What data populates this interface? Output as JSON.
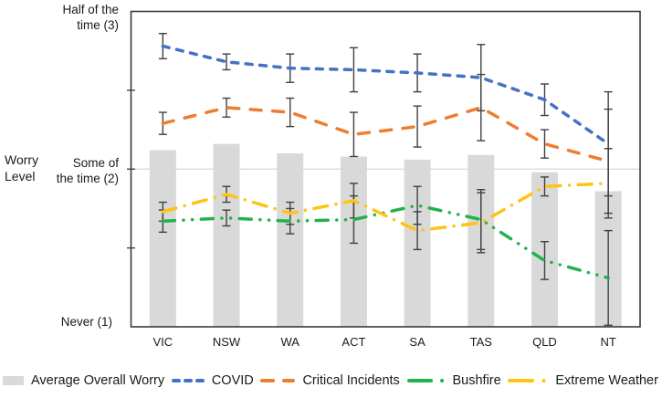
{
  "y_axis": {
    "title": [
      "Worry",
      "Level"
    ],
    "label_3": [
      "Half of the",
      "time (3)"
    ],
    "label_2": [
      "Some of",
      "the time (2)"
    ],
    "label_1": "Never (1)"
  },
  "colors": {
    "bar": "#d9d9d9",
    "covid": "#4472c4",
    "critical": "#ed7d31",
    "bushfire": "#22b24c",
    "extreme": "#ffc412",
    "error_bar": "#404040",
    "axis": "#3a3a3a",
    "gridline": "#d9d9d9",
    "text": "#1a1a1a"
  },
  "chart_data": {
    "type": "bar",
    "subtype": "combo bar + dashed lines with error bars",
    "categories": [
      "VIC",
      "NSW",
      "WA",
      "ACT",
      "SA",
      "TAS",
      "QLD",
      "NT"
    ],
    "ylabel": "Worry Level",
    "ylim": [
      1,
      3
    ],
    "y_ticks": [
      1,
      1.5,
      2,
      2.5,
      3
    ],
    "y_tick_named": {
      "1": "Never (1)",
      "2": "Some of the time (2)",
      "3": "Half of the time (3)"
    },
    "gridline_at": 2,
    "legend_position": "bottom",
    "bar_series": {
      "name": "Average Overall Worry",
      "color": "#d9d9d9",
      "values": [
        2.12,
        2.16,
        2.1,
        2.08,
        2.06,
        2.09,
        1.98,
        1.86
      ]
    },
    "line_series": [
      {
        "key": "covid",
        "name": "COVID",
        "color": "#4472c4",
        "dash": "dash",
        "values": [
          2.78,
          2.68,
          2.64,
          2.63,
          2.61,
          2.58,
          2.44,
          2.16
        ],
        "errors": [
          0.08,
          0.05,
          0.09,
          0.14,
          0.12,
          0.21,
          0.1,
          0.33
        ]
      },
      {
        "key": "critical",
        "name": "Critical Incidents",
        "color": "#ed7d31",
        "dash": "long-dash",
        "values": [
          2.29,
          2.39,
          2.36,
          2.22,
          2.27,
          2.39,
          2.16,
          2.05
        ],
        "errors": [
          0.07,
          0.06,
          0.09,
          0.14,
          0.13,
          0.21,
          0.09,
          0.33
        ]
      },
      {
        "key": "bushfire",
        "name": "Bushfire",
        "color": "#22b24c",
        "dash": "dash-dot-dot",
        "values": [
          1.67,
          1.69,
          1.67,
          1.68,
          1.77,
          1.68,
          1.42,
          1.31
        ],
        "errors": [
          0.07,
          0.05,
          0.08,
          0.15,
          0.12,
          0.19,
          0.12,
          0.3
        ]
      },
      {
        "key": "extreme",
        "name": "Extreme Weather",
        "color": "#ffc412",
        "dash": "long-dash-dot",
        "values": [
          1.73,
          1.84,
          1.72,
          1.8,
          1.61,
          1.66,
          1.89,
          1.91
        ],
        "errors": [
          0.06,
          0.05,
          0.07,
          0.11,
          0.12,
          0.19,
          0.06,
          0.22
        ]
      }
    ]
  }
}
